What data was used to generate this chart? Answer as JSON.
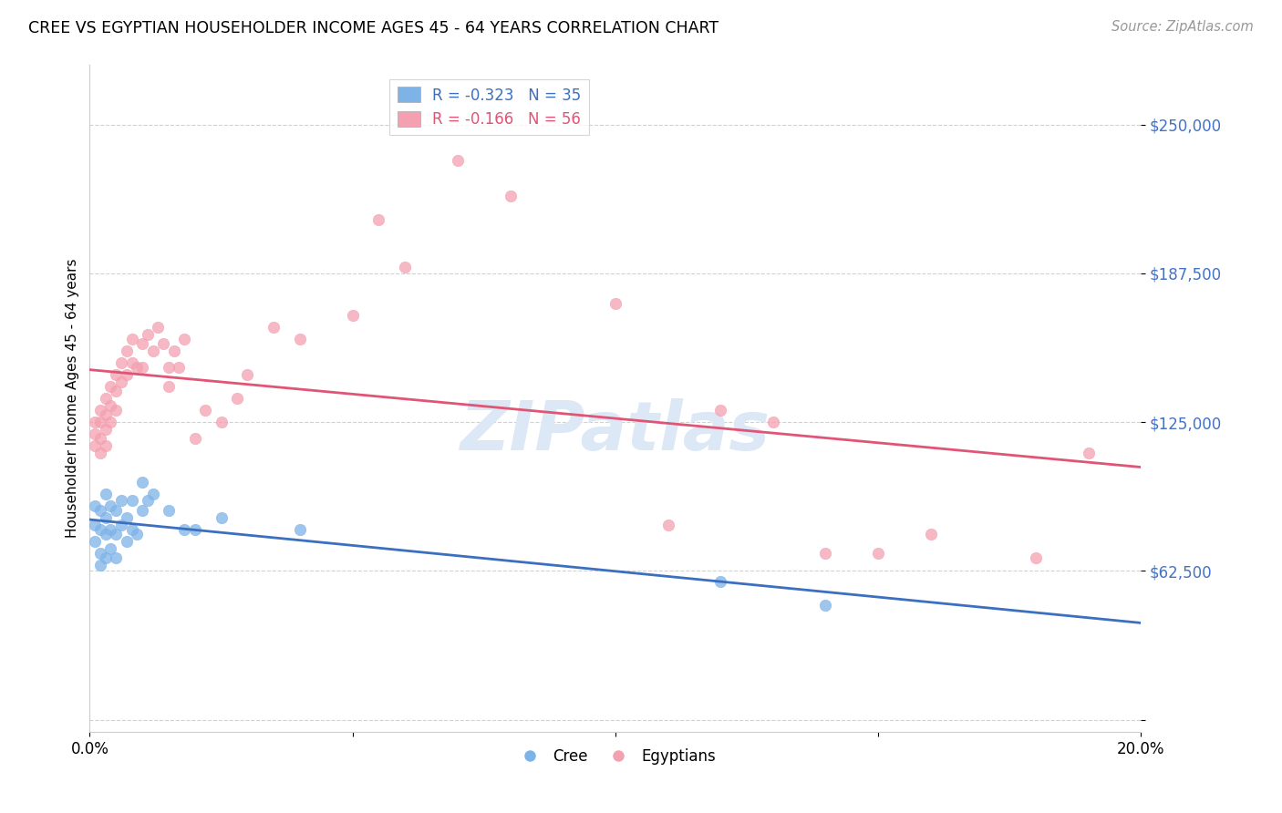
{
  "title": "CREE VS EGYPTIAN HOUSEHOLDER INCOME AGES 45 - 64 YEARS CORRELATION CHART",
  "source": "Source: ZipAtlas.com",
  "ylabel": "Householder Income Ages 45 - 64 years",
  "xlim": [
    0.0,
    0.2
  ],
  "ylim": [
    -5000,
    275000
  ],
  "yticks": [
    0,
    62500,
    125000,
    187500,
    250000
  ],
  "xticks": [
    0.0,
    0.05,
    0.1,
    0.15,
    0.2
  ],
  "xtick_labels": [
    "0.0%",
    "",
    "",
    "",
    "20.0%"
  ],
  "ytick_labels": [
    "",
    "$62,500",
    "$125,000",
    "$187,500",
    "$250,000"
  ],
  "cree_color": "#7EB3E8",
  "egyptian_color": "#F4A0B0",
  "line_cree_color": "#3B6FBF",
  "line_egyptian_color": "#E05575",
  "legend_label_cree": "R = -0.323   N = 35",
  "legend_label_egyptian": "R = -0.166   N = 56",
  "watermark": "ZIPatlas",
  "marker_size": 80,
  "cree_x": [
    0.001,
    0.001,
    0.001,
    0.002,
    0.002,
    0.002,
    0.002,
    0.003,
    0.003,
    0.003,
    0.003,
    0.004,
    0.004,
    0.004,
    0.005,
    0.005,
    0.005,
    0.006,
    0.006,
    0.007,
    0.007,
    0.008,
    0.008,
    0.009,
    0.01,
    0.01,
    0.011,
    0.012,
    0.015,
    0.018,
    0.02,
    0.025,
    0.04,
    0.12,
    0.14
  ],
  "cree_y": [
    90000,
    82000,
    75000,
    88000,
    80000,
    70000,
    65000,
    95000,
    85000,
    78000,
    68000,
    90000,
    80000,
    72000,
    88000,
    78000,
    68000,
    92000,
    82000,
    85000,
    75000,
    92000,
    80000,
    78000,
    100000,
    88000,
    92000,
    95000,
    88000,
    80000,
    80000,
    85000,
    80000,
    58000,
    48000
  ],
  "egyptian_x": [
    0.001,
    0.001,
    0.001,
    0.002,
    0.002,
    0.002,
    0.002,
    0.003,
    0.003,
    0.003,
    0.003,
    0.004,
    0.004,
    0.004,
    0.005,
    0.005,
    0.005,
    0.006,
    0.006,
    0.007,
    0.007,
    0.008,
    0.008,
    0.009,
    0.01,
    0.01,
    0.011,
    0.012,
    0.013,
    0.014,
    0.015,
    0.015,
    0.016,
    0.017,
    0.018,
    0.02,
    0.022,
    0.025,
    0.028,
    0.03,
    0.035,
    0.04,
    0.05,
    0.055,
    0.06,
    0.07,
    0.08,
    0.1,
    0.11,
    0.12,
    0.13,
    0.14,
    0.15,
    0.16,
    0.18,
    0.19
  ],
  "egyptian_y": [
    125000,
    120000,
    115000,
    130000,
    125000,
    118000,
    112000,
    135000,
    128000,
    122000,
    115000,
    140000,
    132000,
    125000,
    145000,
    138000,
    130000,
    150000,
    142000,
    155000,
    145000,
    160000,
    150000,
    148000,
    158000,
    148000,
    162000,
    155000,
    165000,
    158000,
    148000,
    140000,
    155000,
    148000,
    160000,
    118000,
    130000,
    125000,
    135000,
    145000,
    165000,
    160000,
    170000,
    210000,
    190000,
    235000,
    220000,
    175000,
    82000,
    130000,
    125000,
    70000,
    70000,
    78000,
    68000,
    112000
  ]
}
